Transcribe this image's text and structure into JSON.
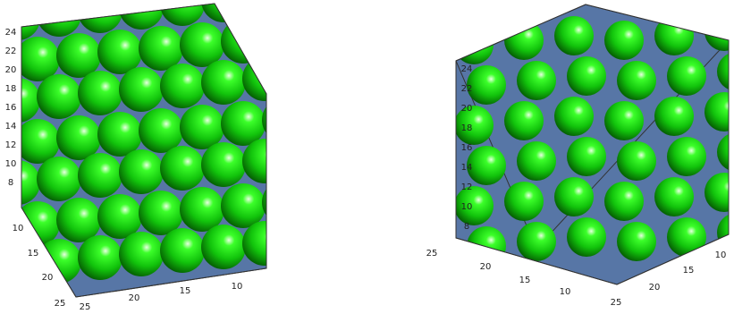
{
  "panels": [
    {
      "z_ticks": [
        "24",
        "22",
        "20",
        "18",
        "16",
        "14",
        "12",
        "10",
        "8"
      ],
      "left_ticks": [
        "10",
        "15",
        "20",
        "25"
      ],
      "bottom_ticks": [
        "25",
        "20",
        "15",
        "10"
      ]
    },
    {
      "z_ticks": [
        "24",
        "22",
        "20",
        "18",
        "16",
        "14",
        "12",
        "10",
        "8"
      ],
      "left_ticks": [
        "25",
        "20",
        "15",
        "10"
      ],
      "bottom_ticks": [
        "25",
        "20",
        "15",
        "10"
      ]
    }
  ]
}
